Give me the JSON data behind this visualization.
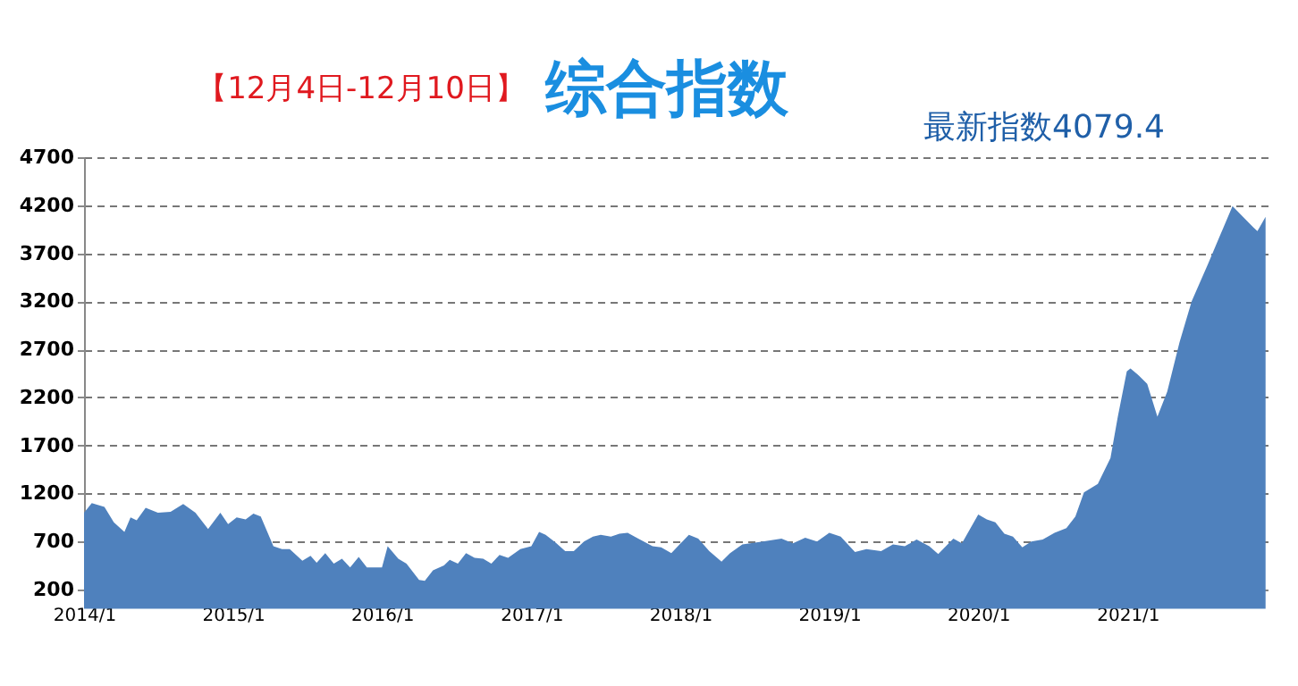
{
  "chart_data": {
    "type": "area",
    "title": "综合指数",
    "subtitle": "【12月4日-12月10日】",
    "annotations": [
      "最新指数4079.4"
    ],
    "x": [
      "2014-01-01",
      "2014-01-20",
      "2014-02-20",
      "2014-03-15",
      "2014-04-10",
      "2014-04-25",
      "2014-05-10",
      "2014-06-01",
      "2014-07-01",
      "2014-08-01",
      "2014-09-01",
      "2014-10-01",
      "2014-11-01",
      "2014-12-01",
      "2014-12-20",
      "2015-01-10",
      "2015-02-01",
      "2015-02-20",
      "2015-03-10",
      "2015-04-10",
      "2015-05-01",
      "2015-05-20",
      "2015-06-20",
      "2015-07-10",
      "2015-07-25",
      "2015-08-15",
      "2015-09-05",
      "2015-09-25",
      "2015-10-15",
      "2015-11-05",
      "2015-11-25",
      "2016-01-01",
      "2016-01-15",
      "2016-02-10",
      "2016-03-01",
      "2016-04-01",
      "2016-04-15",
      "2016-05-05",
      "2016-06-01",
      "2016-06-15",
      "2016-07-05",
      "2016-07-25",
      "2016-08-15",
      "2016-09-05",
      "2016-09-25",
      "2016-10-15",
      "2016-11-05",
      "2016-12-05",
      "2017-01-01",
      "2017-01-20",
      "2017-02-05",
      "2017-03-01",
      "2017-03-25",
      "2017-04-15",
      "2017-05-10",
      "2017-06-01",
      "2017-06-20",
      "2017-07-15",
      "2017-08-05",
      "2017-08-25",
      "2017-09-20",
      "2017-10-25",
      "2017-11-15",
      "2017-12-10",
      "2018-01-22",
      "2018-02-14",
      "2018-03-13",
      "2018-04-12",
      "2018-05-03",
      "2018-06-02",
      "2018-07-22",
      "2018-09-06",
      "2018-10-04",
      "2018-11-03",
      "2018-12-02",
      "2019-01-01",
      "2019-01-29",
      "2019-03-05",
      "2019-04-02",
      "2019-05-08",
      "2019-06-06",
      "2019-07-05",
      "2019-08-03",
      "2019-09-03",
      "2019-09-25",
      "2019-11-01",
      "2019-11-22",
      "2020-01-01",
      "2020-01-22",
      "2020-02-12",
      "2020-03-05",
      "2020-03-26",
      "2020-04-18",
      "2020-05-10",
      "2020-06-07",
      "2020-07-06",
      "2020-08-04",
      "2020-08-26",
      "2020-09-16",
      "2020-10-20",
      "2020-11-20",
      "2020-12-08",
      "2020-12-30",
      "2021-01-08",
      "2021-01-28",
      "2021-02-18",
      "2021-03-15",
      "2021-04-08",
      "2021-05-08",
      "2021-06-07",
      "2021-07-17",
      "2021-08-16",
      "2021-09-15",
      "2021-10-15",
      "2021-11-05",
      "2021-11-15",
      "2021-12-05"
    ],
    "series": [
      {
        "color": "#4f81bd",
        "values": [
          1000,
          1100,
          1060,
          900,
          800,
          950,
          920,
          1050,
          1000,
          1010,
          1090,
          1000,
          830,
          1000,
          880,
          950,
          930,
          990,
          960,
          650,
          620,
          620,
          500,
          550,
          480,
          580,
          470,
          520,
          430,
          540,
          430,
          430,
          650,
          520,
          470,
          300,
          290,
          400,
          450,
          510,
          470,
          580,
          530,
          520,
          470,
          560,
          530,
          620,
          650,
          800,
          770,
          690,
          600,
          600,
          700,
          750,
          770,
          750,
          780,
          790,
          730,
          650,
          640,
          580,
          770,
          730,
          600,
          490,
          580,
          670,
          700,
          730,
          680,
          740,
          700,
          790,
          750,
          590,
          620,
          600,
          670,
          650,
          720,
          650,
          570,
          730,
          680,
          980,
          930,
          900,
          780,
          750,
          640,
          700,
          720,
          790,
          840,
          960,
          1210,
          1300,
          1570,
          2000,
          2470,
          2500,
          2430,
          2340,
          2000,
          2260,
          2770,
          3200,
          3590,
          3890,
          4190,
          4060,
          3970,
          3930,
          4079.4
        ]
      }
    ],
    "xlim": [
      "2014-01-01",
      "2021-12-10"
    ],
    "xticks": [
      {
        "value": "2014-01-01",
        "label": "2014/1"
      },
      {
        "value": "2015-01-01",
        "label": "2015/1"
      },
      {
        "value": "2016-01-01",
        "label": "2016/1"
      },
      {
        "value": "2017-01-01",
        "label": "2017/1"
      },
      {
        "value": "2018-01-01",
        "label": "2018/1"
      },
      {
        "value": "2019-01-01",
        "label": "2019/1"
      },
      {
        "value": "2020-01-01",
        "label": "2020/1"
      },
      {
        "value": "2021-01-01",
        "label": "2021/1"
      }
    ],
    "ylim": [
      200,
      4700
    ],
    "yticks": [
      200,
      700,
      1200,
      1700,
      2200,
      2700,
      3200,
      3700,
      4200,
      4700
    ],
    "grid": "y"
  }
}
